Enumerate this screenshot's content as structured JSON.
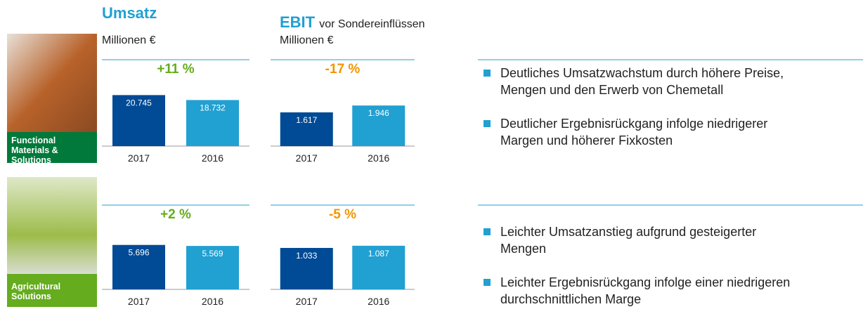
{
  "columns": [
    {
      "title": "Umsatz",
      "unit": "Millionen €"
    },
    {
      "title": "EBIT",
      "subtitle": "vor Sondereinflüssen",
      "unit": "Millionen €"
    }
  ],
  "segments": [
    {
      "label": "Functional Materials & Solutions",
      "bullets": [
        "Deutliches Umsatzwachstum durch höhere Preise, Mengen und den Erwerb von Chemetall",
        "Deutlicher Ergebnisrückgang infolge niedrigerer Margen und höherer Fixkosten"
      ]
    },
    {
      "label": "Agricultural Solutions",
      "bullets": [
        "Leichter Umsatzanstieg aufgrund gesteigerter Mengen",
        "Leichter Ergebnisrückgang infolge einer niedrigeren durchschnittlichen Marge"
      ]
    }
  ],
  "chart_data": [
    {
      "type": "bar",
      "annotation": "+11 %",
      "annotation_color": "#65ac1e",
      "categories": [
        "2017",
        "2016"
      ],
      "values": [
        20745,
        18732
      ],
      "value_labels": [
        "20.745",
        "18.732"
      ],
      "colors": [
        "#004a96",
        "#21a0d2"
      ],
      "ylim": [
        0,
        28000
      ]
    },
    {
      "type": "bar",
      "annotation": "-17 %",
      "annotation_color": "#f39500",
      "categories": [
        "2017",
        "2016"
      ],
      "values": [
        1617,
        1946
      ],
      "value_labels": [
        "1.617",
        "1.946"
      ],
      "colors": [
        "#004a96",
        "#21a0d2"
      ],
      "ylim": [
        0,
        3300
      ]
    },
    {
      "type": "bar",
      "annotation": "+2 %",
      "annotation_color": "#65ac1e",
      "categories": [
        "2017",
        "2016"
      ],
      "values": [
        5696,
        5569
      ],
      "value_labels": [
        "5.696",
        "5.569"
      ],
      "colors": [
        "#004a96",
        "#21a0d2"
      ],
      "ylim": [
        0,
        9000
      ]
    },
    {
      "type": "bar",
      "annotation": "-5 %",
      "annotation_color": "#f39500",
      "categories": [
        "2017",
        "2016"
      ],
      "values": [
        1033,
        1087
      ],
      "value_labels": [
        "1.033",
        "1.087"
      ],
      "colors": [
        "#004a96",
        "#21a0d2"
      ],
      "ylim": [
        0,
        1750
      ]
    }
  ]
}
